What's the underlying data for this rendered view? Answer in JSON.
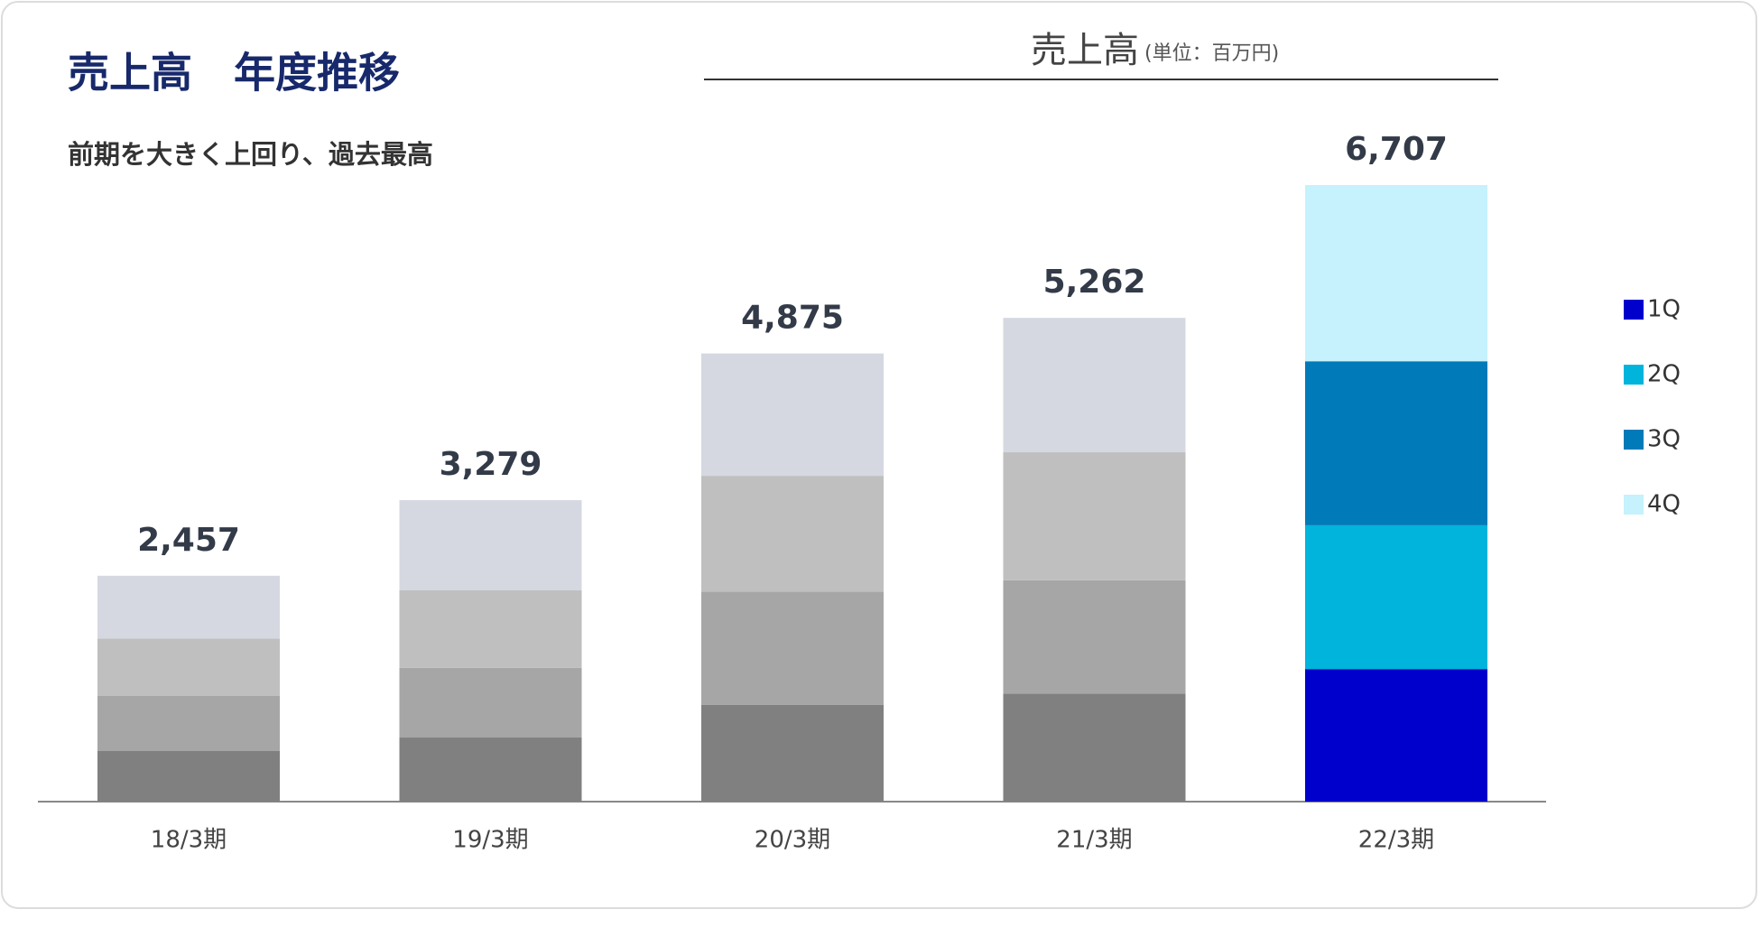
{
  "header": {
    "title": "売上高　年度推移",
    "subtitle": "前期を大きく上回り、過去最高"
  },
  "chart_data": {
    "type": "stacked_bar",
    "title": "売上高",
    "unit": "(単位：百万円)",
    "categories": [
      "18/3期",
      "19/3期",
      "20/3期",
      "21/3期",
      "22/3期"
    ],
    "series": [
      {
        "name": "1Q",
        "color": "#0000cc",
        "colors": [
          "#808080",
          "#808080",
          "#808080",
          "#808080",
          "#0000cc"
        ],
        "values": [
          550,
          697,
          1051,
          1173,
          1442
        ]
      },
      {
        "name": "2Q",
        "color": "#00b4dc",
        "colors": [
          "#a6a6a6",
          "#a6a6a6",
          "#a6a6a6",
          "#a6a6a6",
          "#00b4dc"
        ],
        "values": [
          599,
          758,
          1234,
          1234,
          1564
        ]
      },
      {
        "name": "3Q",
        "color": "#007ab8",
        "colors": [
          "#bfbfbf",
          "#bfbfbf",
          "#bfbfbf",
          "#bfbfbf",
          "#007ab8"
        ],
        "values": [
          623,
          843,
          1259,
          1393,
          1784
        ]
      },
      {
        "name": "4Q",
        "color": "#c5f2fc",
        "colors": [
          "#d5d8e1",
          "#d5d8e1",
          "#d5d8e1",
          "#d5d8e1",
          "#c5f2fc"
        ],
        "values": [
          685,
          981,
          1331,
          1462,
          1917
        ]
      }
    ],
    "totals": [
      2457,
      3279,
      4875,
      5262,
      6707
    ],
    "total_labels": [
      "2,457",
      "3,279",
      "4,875",
      "5,262",
      "6,707"
    ],
    "legend": "right"
  }
}
